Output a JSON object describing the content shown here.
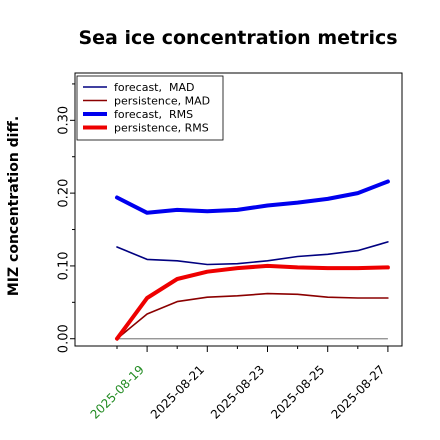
{
  "chart_data": {
    "type": "line",
    "title": "Sea ice concentration metrics",
    "xlabel": "",
    "ylabel": "MIZ concentration diff.",
    "ylim": [
      -0.01,
      0.365
    ],
    "yticks": [
      "0.00",
      "0.10",
      "0.20",
      "0.30"
    ],
    "ytick_values": [
      0.0,
      0.1,
      0.2,
      0.3
    ],
    "y_minor_ticks": [
      0.05,
      0.15,
      0.25,
      0.35
    ],
    "x": [
      "2025-08-18",
      "2025-08-19",
      "2025-08-20",
      "2025-08-21",
      "2025-08-22",
      "2025-08-23",
      "2025-08-24",
      "2025-08-25",
      "2025-08-26",
      "2025-08-27"
    ],
    "xticks": [
      "2025-08-19",
      "2025-08-21",
      "2025-08-23",
      "2025-08-25",
      "2025-08-27"
    ],
    "xtick_colors": [
      "#228b22",
      "#000000",
      "#000000",
      "#000000",
      "#000000"
    ],
    "legend_position": "upper-left",
    "grid": false,
    "reference_line": 0.0,
    "series": [
      {
        "name": "forecast,  MAD",
        "color": "#000080",
        "width": 1.6,
        "values": [
          0.126,
          0.109,
          0.107,
          0.102,
          0.103,
          0.107,
          0.113,
          0.116,
          0.121,
          0.133
        ]
      },
      {
        "name": "persistence, MAD",
        "color": "#8b0000",
        "width": 1.6,
        "values": [
          0.0,
          0.034,
          0.051,
          0.057,
          0.059,
          0.062,
          0.061,
          0.057,
          0.056,
          0.056
        ]
      },
      {
        "name": "forecast,  RMS",
        "color": "#0000ee",
        "width": 4,
        "values": [
          0.194,
          0.173,
          0.177,
          0.175,
          0.177,
          0.183,
          0.187,
          0.192,
          0.2,
          0.216
        ]
      },
      {
        "name": "persistence, RMS",
        "color": "#ee0000",
        "width": 4,
        "values": [
          0.0,
          0.056,
          0.082,
          0.092,
          0.097,
          0.1,
          0.098,
          0.097,
          0.097,
          0.098
        ]
      }
    ]
  }
}
